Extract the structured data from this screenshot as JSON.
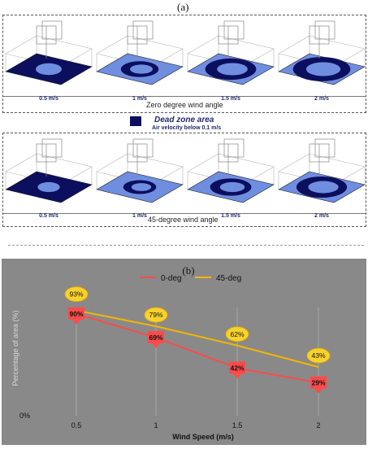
{
  "panel_a_label": "(a)",
  "panel_b_label": "(b)",
  "groups": [
    {
      "title": "Zero degree wind angle",
      "cells": [
        {
          "speed": "0.5 m/s",
          "dead_fraction": 0.9
        },
        {
          "speed": "1 m/s",
          "dead_fraction": 0.69
        },
        {
          "speed": "1.5 m/s",
          "dead_fraction": 0.42
        },
        {
          "speed": "2 m/s",
          "dead_fraction": 0.29
        }
      ]
    },
    {
      "title": "45-degree wind angle",
      "cells": [
        {
          "speed": "0.5 m/s",
          "dead_fraction": 0.93
        },
        {
          "speed": "1 m/s",
          "dead_fraction": 0.79
        },
        {
          "speed": "1.5 m/s",
          "dead_fraction": 0.62
        },
        {
          "speed": "2 m/s",
          "dead_fraction": 0.43
        }
      ]
    }
  ],
  "legend": {
    "title": "Dead zone area",
    "subtitle": "Air velocity below 0.1 m/s",
    "swatch_color": "#0b0f5e"
  },
  "colors": {
    "dead_zone": "#0b0f5e",
    "live_zone": "#6f8ee0",
    "chart_bg": "#898989",
    "zero_deg_line": "#ff4a4a",
    "deg45_line": "#f2b600",
    "label_badge": "#f7d22e"
  },
  "chart_data": {
    "type": "line",
    "categories": [
      "0.5",
      "1",
      "1.5",
      "2"
    ],
    "xlabel": "Wind Speed  (m/s)",
    "ylabel": "Percentage of area (%)",
    "y_tick_labels": [
      "0%"
    ],
    "ylim": [
      0,
      110
    ],
    "legend_position": "top-center",
    "series": [
      {
        "name": "0-deg",
        "values": [
          90,
          69,
          42,
          29
        ],
        "labels": [
          "90%",
          "69%",
          "42%",
          "29%"
        ]
      },
      {
        "name": "45-deg",
        "values": [
          93,
          79,
          62,
          43
        ],
        "labels": [
          "93%",
          "79%",
          "62%",
          "43%"
        ]
      }
    ]
  }
}
